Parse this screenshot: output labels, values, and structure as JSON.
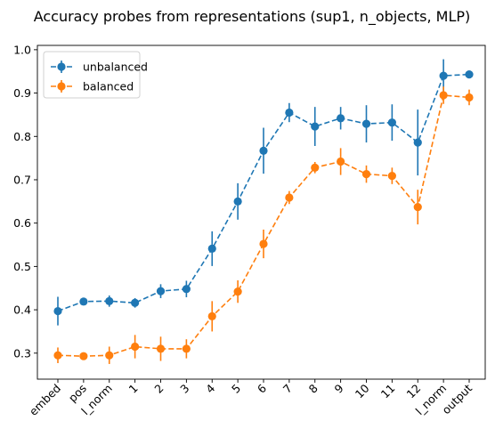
{
  "chart_data": {
    "type": "line",
    "title": "Accuracy probes from representations (sup1, n_objects, MLP)",
    "xlabel": "",
    "ylabel": "",
    "categories": [
      "embed",
      "pos",
      "l_norm",
      "1",
      "2",
      "3",
      "4",
      "5",
      "6",
      "7",
      "8",
      "9",
      "10",
      "11",
      "12",
      "l_norm",
      "output"
    ],
    "ylim": [
      0.24,
      1.01
    ],
    "yticks": [
      0.3,
      0.4,
      0.5,
      0.6,
      0.7,
      0.8,
      0.9,
      1.0
    ],
    "ytick_labels": [
      "0.3",
      "0.4",
      "0.5",
      "0.6",
      "0.7",
      "0.8",
      "0.9",
      "1.0"
    ],
    "grid": false,
    "legend_position": "top-left",
    "series": [
      {
        "name": "unbalanced",
        "color": "#1f77b4",
        "values": [
          0.397,
          0.419,
          0.42,
          0.416,
          0.443,
          0.448,
          0.541,
          0.65,
          0.767,
          0.855,
          0.823,
          0.842,
          0.829,
          0.832,
          0.786,
          0.94,
          0.943
        ],
        "errors": [
          0.033,
          0.005,
          0.013,
          0.011,
          0.016,
          0.019,
          0.04,
          0.042,
          0.053,
          0.022,
          0.045,
          0.026,
          0.043,
          0.042,
          0.076,
          0.038,
          0.007
        ]
      },
      {
        "name": "balanced",
        "color": "#ff7f0e",
        "values": [
          0.295,
          0.293,
          0.295,
          0.315,
          0.31,
          0.31,
          0.385,
          0.442,
          0.552,
          0.659,
          0.728,
          0.742,
          0.713,
          0.709,
          0.637,
          0.895,
          0.89
        ],
        "errors": [
          0.018,
          0.005,
          0.02,
          0.027,
          0.028,
          0.022,
          0.035,
          0.026,
          0.033,
          0.015,
          0.013,
          0.031,
          0.02,
          0.019,
          0.04,
          0.02,
          0.018
        ]
      }
    ]
  }
}
